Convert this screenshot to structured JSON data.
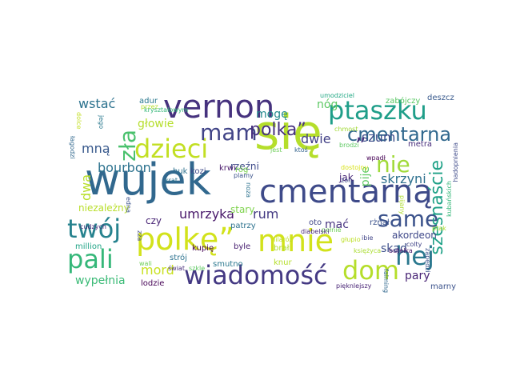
{
  "words": [
    {
      "t": "się",
      "c": "#b5de2b"
    },
    {
      "t": "wujek",
      "c": "#31688e"
    },
    {
      "t": "cmentarną",
      "c": "#3e4a89"
    },
    {
      "t": "vernon",
      "c": "#46327e"
    },
    {
      "t": "mnie",
      "c": "#d2e21b"
    },
    {
      "t": "polkę”",
      "c": "#d2e21b"
    },
    {
      "t": "wiadomość",
      "c": "#443983"
    },
    {
      "t": "dom",
      "c": "#b5de2b"
    },
    {
      "t": "dzieci",
      "c": "#c2df23"
    },
    {
      "t": "ptaszku",
      "c": "#1f9e89"
    },
    {
      "t": "pali",
      "c": "#35b779"
    },
    {
      "t": "twój",
      "c": "#26828e"
    },
    {
      "t": "hej",
      "c": "#2a788e"
    },
    {
      "t": "same",
      "c": "#3b528b"
    },
    {
      "t": "nie",
      "c": "#a0da39"
    },
    {
      "t": "mam",
      "c": "#414487"
    },
    {
      "t": "polka”",
      "c": "#46307e"
    },
    {
      "t": "zła",
      "c": "#4ac16d"
    },
    {
      "t": "cmentarna",
      "c": "#31688e"
    },
    {
      "t": "szesnaście",
      "c": "#1fa187"
    },
    {
      "t": "umrzyka",
      "c": "#48186a"
    },
    {
      "t": "mord",
      "c": "#c8e020"
    },
    {
      "t": "rum",
      "c": "#443a83"
    },
    {
      "t": "„",
      "c": "#472d7b"
    },
    {
      "t": "bourbon",
      "c": "#2c728e"
    },
    {
      "t": "skrzyni",
      "c": "#2d708e"
    },
    {
      "t": "dwa",
      "c": "#b8de29"
    },
    {
      "t": "mną",
      "c": "#38598c"
    },
    {
      "t": "szum",
      "c": "#3e4c8a"
    },
    {
      "t": "wstać",
      "c": "#2c728e"
    },
    {
      "t": "dwie",
      "c": "#424086"
    },
    {
      "t": "mogę",
      "c": "#238a8d"
    },
    {
      "t": "nóg",
      "c": "#5cc863"
    },
    {
      "t": "głowie",
      "c": "#b5de2b"
    },
    {
      "t": "pije",
      "c": "#5ec962"
    },
    {
      "t": "skąd",
      "c": "#3c4f8a"
    },
    {
      "t": "mać",
      "c": "#46337f"
    },
    {
      "t": "pary",
      "c": "#482475"
    },
    {
      "t": "wypełnia",
      "c": "#3aba76"
    },
    {
      "t": "rzeźni",
      "c": "#3e4a89"
    },
    {
      "t": "akordeon",
      "c": "#3f4889"
    },
    {
      "t": "jak",
      "c": "#482878"
    },
    {
      "t": "stary",
      "c": "#7fd34e"
    },
    {
      "t": "niezależny",
      "c": "#b8de29"
    },
    {
      "t": "czy",
      "c": "#482475"
    },
    {
      "t": "adur",
      "c": "#2a788e"
    },
    {
      "t": "zabójczy",
      "c": "#5ac864"
    },
    {
      "t": "deszcz",
      "c": "#38598c"
    },
    {
      "t": "metra",
      "c": "#472d7b"
    },
    {
      "t": "rżnął",
      "c": "#3b528b"
    },
    {
      "t": "lodzie",
      "c": "#440154"
    },
    {
      "t": "knur",
      "c": "#b5de2b"
    },
    {
      "t": "smutno",
      "c": "#2a788e"
    },
    {
      "t": "strój",
      "c": "#2c728e"
    },
    {
      "t": "kupię",
      "c": "#440154"
    },
    {
      "t": "huk",
      "c": "#2d708e"
    },
    {
      "t": "kozi",
      "c": "#3e4a89"
    },
    {
      "t": "krwi",
      "c": "#48186a"
    },
    {
      "t": "róg",
      "c": "#7ad151"
    },
    {
      "t": "brał",
      "c": "#addc30"
    },
    {
      "t": "byle",
      "c": "#482071"
    },
    {
      "t": "million",
      "c": "#20a486"
    },
    {
      "t": "marny",
      "c": "#3b528b"
    },
    {
      "t": "patrzy",
      "c": "#2c728e"
    },
    {
      "t": "oto",
      "c": "#404688"
    },
    {
      "t": "umodziciel",
      "c": "#22a884"
    },
    {
      "t": "przez",
      "c": "#b5de2b"
    },
    {
      "t": "kryształowym",
      "c": "#35b779"
    },
    {
      "t": "jest",
      "c": "#6ece58"
    },
    {
      "t": "ktoś",
      "c": "#33638d"
    },
    {
      "t": "chmost",
      "c": "#a2da37"
    },
    {
      "t": "brodzi",
      "c": "#5ec962"
    },
    {
      "t": "lilaróż",
      "c": "#bddf26"
    },
    {
      "t": "pełnie",
      "c": "#6ece58"
    },
    {
      "t": "diabelski",
      "c": "#482878"
    },
    {
      "t": "colty",
      "c": "#414487"
    },
    {
      "t": "pięknlejszy",
      "c": "#482475"
    },
    {
      "t": "zon",
      "c": "#3e4a89"
    },
    {
      "t": "wpadł",
      "c": "#440154"
    },
    {
      "t": "dostojny",
      "c": "#d8e219"
    },
    {
      "t": "plamy",
      "c": "#3b528b"
    },
    {
      "t": "krat",
      "c": "#2c728e"
    },
    {
      "t": "świat",
      "c": "#472c7a"
    },
    {
      "t": "szkle",
      "c": "#5ec962"
    },
    {
      "t": "wali",
      "c": "#6ece58"
    },
    {
      "t": "zza",
      "c": "#3e4a89"
    },
    {
      "t": "cudzych",
      "c": "#472d7b"
    },
    {
      "t": "edna",
      "c": "#3b528b"
    },
    {
      "t": "łagodzi",
      "c": "#31688e"
    },
    {
      "t": "dolce",
      "c": "#c2df23"
    },
    {
      "t": "jego",
      "c": "#2a788e"
    },
    {
      "t": "noza",
      "c": "#2c728e"
    },
    {
      "t": "głupio",
      "c": "#bddf26"
    },
    {
      "t": "ibie",
      "c": "#414487"
    },
    {
      "t": "księżyca",
      "c": "#aadc32"
    },
    {
      "t": "butelka",
      "c": "#48186a"
    },
    {
      "t": "pijany",
      "c": "#addc30"
    },
    {
      "t": "zapędzi",
      "c": "#3b528b"
    },
    {
      "t": "falming",
      "c": "#31688e"
    },
    {
      "t": "kubańskich",
      "c": "#35b779"
    },
    {
      "t": "hadopnienia",
      "c": "#3e4a89"
    },
    {
      "t": "ptak",
      "c": "#addc30"
    }
  ]
}
